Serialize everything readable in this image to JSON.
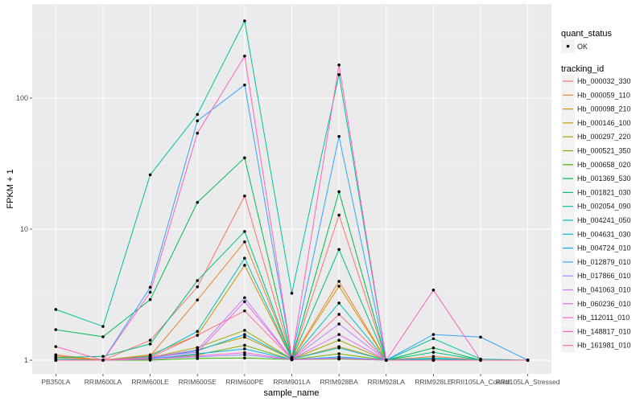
{
  "chart_data": {
    "type": "line",
    "xlabel": "sample_name",
    "ylabel": "FPKM + 1",
    "y_scale": "log10",
    "ylim": [
      0.787,
      522
    ],
    "grid": true,
    "legend_placement": "right",
    "y_ticks": [
      1,
      10,
      100
    ],
    "y_tick_labels": [
      "1",
      "10",
      "100"
    ],
    "categories": [
      "PB350LA",
      "RRIM600LA",
      "RRIM600LE",
      "RRIM600SE",
      "RRIM600PE",
      "RRIM901LA",
      "RRIM928BA",
      "RRIM928LA",
      "RRIM928LE",
      "RRII105LA_Control",
      "RRII105LA_Stressed"
    ],
    "legend_points": {
      "title": "quant_status",
      "entries": [
        "OK"
      ]
    },
    "legend_lines_title": "tracking_id",
    "series": [
      {
        "name": "Hb_000032_330",
        "color": "#F8766D",
        "values": [
          1.1,
          1.0,
          1.42,
          3.63,
          17.9,
          1.02,
          12.8,
          1,
          1,
          1,
          1
        ]
      },
      {
        "name": "Hb_000059_110",
        "color": "#EA8331",
        "values": [
          1.05,
          1.0,
          1.08,
          2.88,
          8.0,
          1.02,
          4.0,
          1,
          1.07,
          1,
          1
        ]
      },
      {
        "name": "Hb_000098_210",
        "color": "#D89000",
        "values": [
          1.08,
          1.0,
          1.1,
          1.55,
          5.3,
          1.02,
          3.67,
          1,
          1.02,
          1,
          1
        ]
      },
      {
        "name": "Hb_000146_100",
        "color": "#C09B00",
        "values": [
          1,
          1,
          1.04,
          1.2,
          1.5,
          1.02,
          1.27,
          1,
          1,
          1,
          1
        ]
      },
      {
        "name": "Hb_000297_220",
        "color": "#A3A500",
        "values": [
          1,
          1,
          1.05,
          1.25,
          1.69,
          1.02,
          1.42,
          1,
          1,
          1,
          1
        ]
      },
      {
        "name": "Hb_000521_350",
        "color": "#7CAE00",
        "values": [
          1,
          1,
          1.02,
          1.1,
          1.3,
          1.01,
          1.12,
          1,
          1,
          1,
          1
        ]
      },
      {
        "name": "Hb_000658_020",
        "color": "#39B600",
        "values": [
          1,
          1,
          1.0,
          1.03,
          1.04,
          1.01,
          1.02,
          1,
          1,
          1,
          1
        ]
      },
      {
        "name": "Hb_001369_530",
        "color": "#00BB4E",
        "values": [
          1.71,
          1.51,
          2.9,
          16,
          35,
          1.03,
          19.3,
          1,
          1.24,
          1,
          1
        ]
      },
      {
        "name": "Hb_001821_030",
        "color": "#00BF7D",
        "values": [
          1.05,
          1.07,
          1.33,
          4.05,
          9.6,
          1.02,
          7.0,
          1,
          1.15,
          1,
          1
        ]
      },
      {
        "name": "Hb_002054_090",
        "color": "#00C1A3",
        "values": [
          2.44,
          1.81,
          26,
          75,
          388,
          3.24,
          151,
          1,
          1.46,
          1.02,
          1
        ]
      },
      {
        "name": "Hb_004241_050",
        "color": "#00BFC4",
        "values": [
          1.02,
          1,
          1.07,
          1.66,
          6.0,
          1.02,
          2.73,
          1,
          1.04,
          1,
          1
        ]
      },
      {
        "name": "Hb_004631_030",
        "color": "#00BAE0",
        "values": [
          1,
          1,
          1.03,
          1.18,
          1.57,
          1.02,
          1.24,
          1,
          1.02,
          1,
          1
        ]
      },
      {
        "name": "Hb_004724_010",
        "color": "#00B0F6",
        "values": [
          1,
          1,
          1.02,
          1.12,
          1.22,
          1.01,
          1.06,
          1,
          1,
          1,
          1
        ]
      },
      {
        "name": "Hb_012879_010",
        "color": "#35A2FF",
        "values": [
          1,
          1,
          3.6,
          67,
          126,
          1.05,
          51,
          1,
          1.57,
          1.5,
          1
        ]
      },
      {
        "name": "Hb_017866_010",
        "color": "#9590FF",
        "values": [
          1,
          1,
          1.02,
          1.06,
          1.1,
          1.01,
          1.04,
          1,
          1,
          1,
          1
        ]
      },
      {
        "name": "Hb_041063_010",
        "color": "#C77CFF",
        "values": [
          1,
          1,
          1.05,
          1.2,
          3.0,
          1.02,
          1.89,
          1,
          1,
          1,
          1
        ]
      },
      {
        "name": "Hb_060236_010",
        "color": "#E76BF3",
        "values": [
          1,
          1,
          1.05,
          1.15,
          2.8,
          1.02,
          1.57,
          1,
          1,
          1,
          1
        ]
      },
      {
        "name": "Hb_112011_010",
        "color": "#FA62DB",
        "values": [
          1,
          1,
          1.02,
          1.08,
          1.14,
          1.01,
          1.03,
          1,
          1,
          1,
          1
        ]
      },
      {
        "name": "Hb_148817_010",
        "color": "#FF62BC",
        "values": [
          1.27,
          1,
          3.3,
          54,
          209,
          1.05,
          179,
          1,
          3.43,
          1,
          1
        ]
      },
      {
        "name": "Hb_161981_010",
        "color": "#FF6C91",
        "values": [
          1,
          1,
          1.05,
          1.55,
          2.38,
          1.02,
          2.24,
          1,
          1,
          1,
          1
        ]
      }
    ]
  }
}
